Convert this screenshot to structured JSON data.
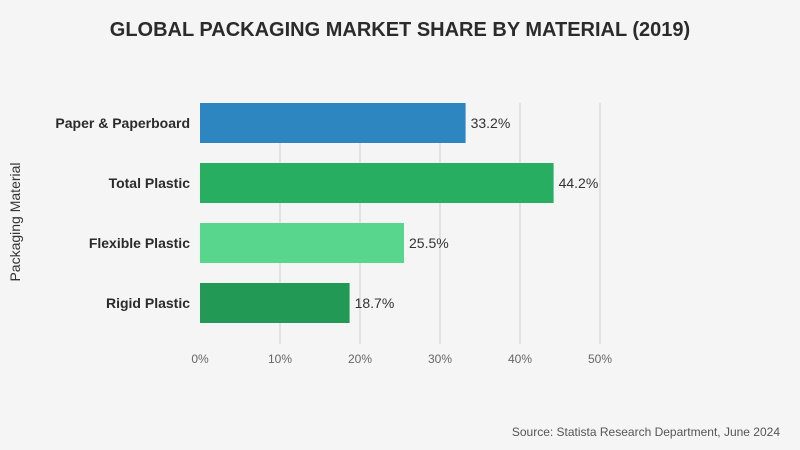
{
  "chart_data": {
    "type": "bar",
    "orientation": "horizontal",
    "title": "GLOBAL PACKAGING MARKET SHARE BY MATERIAL (2019)",
    "ylabel": "Packaging Material",
    "xlabel": "",
    "categories": [
      "Paper & Paperboard",
      "Total Plastic",
      "Flexible Plastic",
      "Rigid Plastic"
    ],
    "values": [
      33.2,
      44.2,
      25.5,
      18.7
    ],
    "value_labels": [
      "33.2%",
      "44.2%",
      "25.5%",
      "18.7%"
    ],
    "bar_colors": [
      "#2e86c1",
      "#27ae60",
      "#58d68d",
      "#229954"
    ],
    "xlim": [
      0,
      50
    ],
    "x_ticks": [
      0,
      10,
      20,
      30,
      40,
      50
    ],
    "x_tick_labels": [
      "0%",
      "10%",
      "20%",
      "30%",
      "40%",
      "50%"
    ],
    "grid": true,
    "legend": "none"
  },
  "source": "Source: Statista Research Department, June 2024"
}
